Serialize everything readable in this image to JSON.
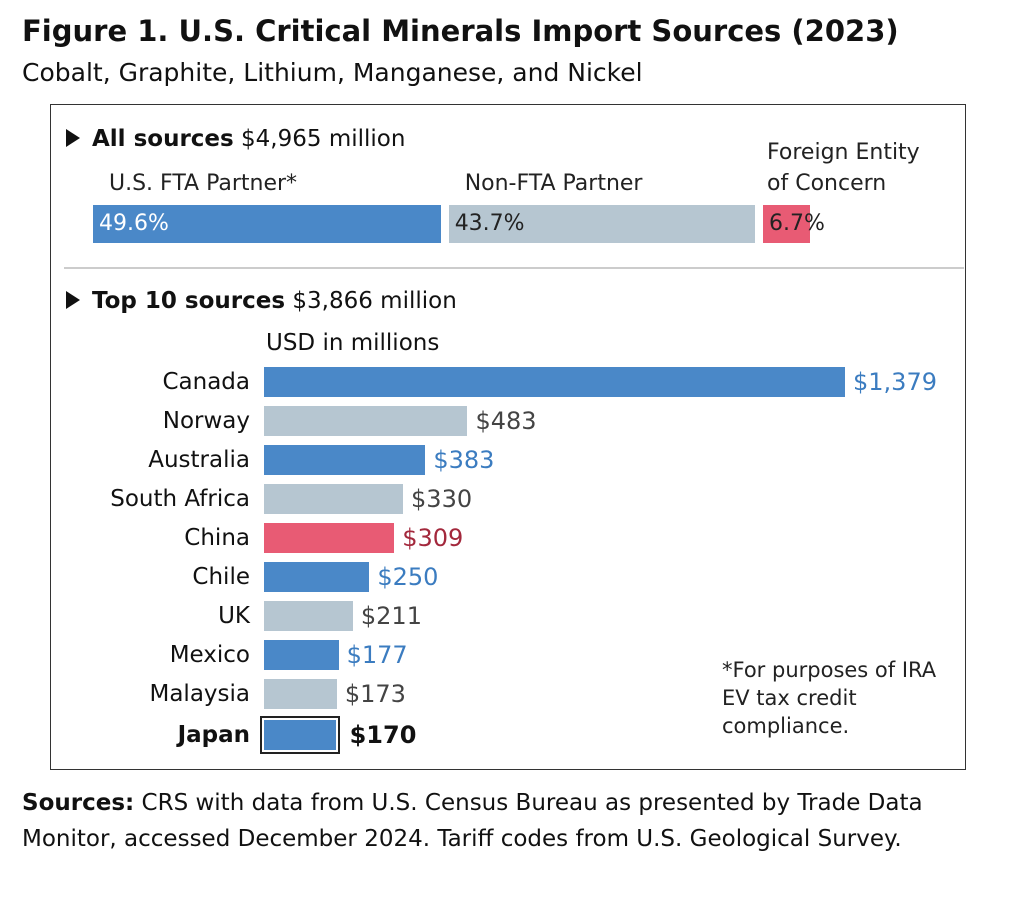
{
  "title": "Figure 1. U.S. Critical Minerals Import Sources (2023)",
  "subtitle": "Cobalt, Graphite, Lithium, Manganese, and Nickel",
  "colors": {
    "fta": "#4a88c8",
    "non_fta": "#b6c6d1",
    "feoc": "#e85b74",
    "fta_text": "#3b7cc0",
    "non_fta_text": "#444444",
    "feoc_text": "#a3283c"
  },
  "chart_data": [
    {
      "type": "bar",
      "title": "All sources",
      "title_value": "$4,965 million",
      "stacked": true,
      "series": [
        {
          "name": "U.S. FTA Partner*",
          "value": 49.6,
          "label": "49.6%",
          "group": "fta"
        },
        {
          "name": "Non-FTA Partner",
          "value": 43.7,
          "label": "43.7%",
          "group": "non_fta"
        },
        {
          "name": "Foreign Entity of Concern",
          "name_lines": [
            "Foreign Entity",
            "of Concern"
          ],
          "value": 6.7,
          "label": "6.7%",
          "group": "feoc"
        }
      ]
    },
    {
      "type": "bar",
      "orientation": "horizontal",
      "title": "Top 10 sources",
      "title_value": "$3,866 million",
      "xlabel": "USD in millions",
      "xlim": [
        0,
        1379
      ],
      "categories": [
        "Canada",
        "Norway",
        "Australia",
        "South Africa",
        "China",
        "Chile",
        "UK",
        "Mexico",
        "Malaysia",
        "Japan"
      ],
      "values": [
        1379,
        483,
        383,
        330,
        309,
        250,
        211,
        177,
        173,
        170
      ],
      "labels": [
        "$1,379",
        "$483",
        "$383",
        "$330",
        "$309",
        "$250",
        "$211",
        "$177",
        "$173",
        "$170"
      ],
      "groups": [
        "fta",
        "non_fta",
        "fta",
        "non_fta",
        "feoc",
        "fta",
        "non_fta",
        "fta",
        "non_fta",
        "fta"
      ],
      "highlighted": "Japan"
    }
  ],
  "note": "*For purposes of IRA EV tax credit compliance.",
  "sources_label": "Sources:",
  "sources_text": " CRS with data from U.S. Census Bureau as presented by Trade Data Monitor, accessed December 2024. Tariff codes from U.S. Geological Survey."
}
